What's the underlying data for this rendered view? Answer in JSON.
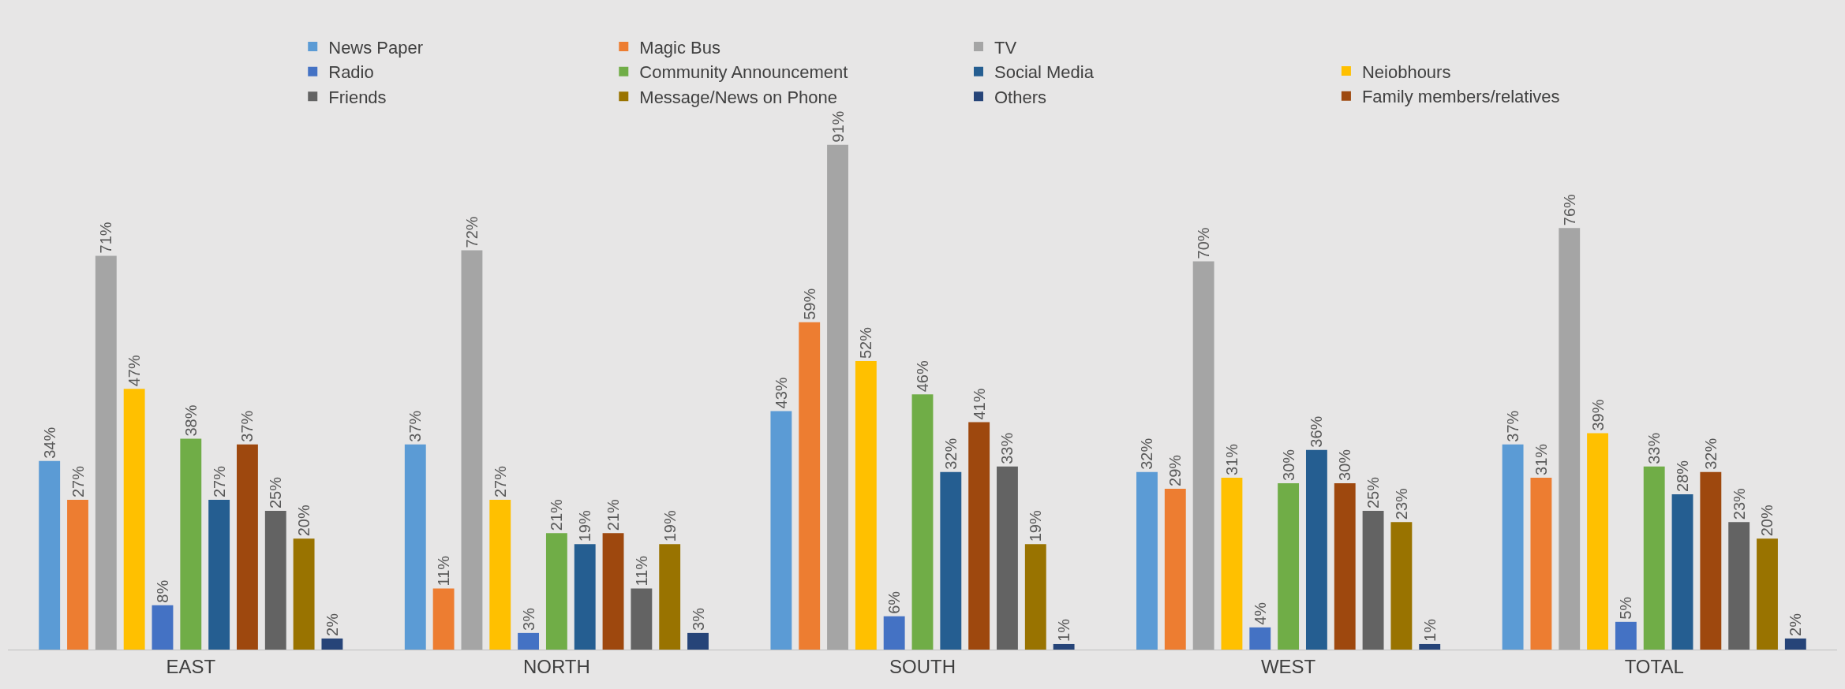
{
  "chart_data": {
    "type": "bar",
    "categories": [
      "EAST",
      "NORTH",
      "SOUTH",
      "WEST",
      "TOTAL"
    ],
    "legend": "top",
    "series": [
      {
        "name": "News Paper",
        "color": "#5b9bd5",
        "values": [
          34,
          37,
          43,
          32,
          37
        ],
        "value_labels": [
          "34%",
          "37%",
          "43%",
          "32%",
          "37%"
        ]
      },
      {
        "name": "Magic Bus",
        "color": "#ed7d31",
        "values": [
          27,
          11,
          59,
          29,
          31
        ],
        "value_labels": [
          "27%",
          "11%",
          "59%",
          "29%",
          "31%"
        ]
      },
      {
        "name": "TV",
        "color": "#a5a5a5",
        "values": [
          71,
          72,
          91,
          70,
          76
        ],
        "value_labels": [
          "71%",
          "72%",
          "91%",
          "70%",
          "76%"
        ]
      },
      {
        "name": "Neiobhours",
        "color": "#ffc000",
        "values": [
          47,
          27,
          52,
          31,
          39
        ],
        "value_labels": [
          "47%",
          "27%",
          "52%",
          "31%",
          "39%"
        ]
      },
      {
        "name": "Radio",
        "color": "#4472c4",
        "values": [
          8,
          3,
          6,
          4,
          5
        ],
        "value_labels": [
          "8%",
          "3%",
          "6%",
          "4%",
          "5%"
        ]
      },
      {
        "name": "Community Announcement",
        "color": "#70ad47",
        "values": [
          38,
          21,
          46,
          30,
          33
        ],
        "value_labels": [
          "38%",
          "21%",
          "46%",
          "30%",
          "33%"
        ]
      },
      {
        "name": "Social Media",
        "color": "#255e91",
        "values": [
          27,
          19,
          32,
          36,
          28
        ],
        "value_labels": [
          "27%",
          "19%",
          "32%",
          "36%",
          "28%"
        ]
      },
      {
        "name": "Family members/relatives",
        "color": "#9e480e",
        "values": [
          37,
          21,
          41,
          30,
          32
        ],
        "value_labels": [
          "37%",
          "21%",
          "41%",
          "30%",
          "32%"
        ]
      },
      {
        "name": "Friends",
        "color": "#636363",
        "values": [
          25,
          11,
          33,
          25,
          23
        ],
        "value_labels": [
          "25%",
          "11%",
          "33%",
          "25%",
          "23%"
        ]
      },
      {
        "name": "Message/News on Phone",
        "color": "#997300",
        "values": [
          20,
          19,
          19,
          23,
          20
        ],
        "value_labels": [
          "20%",
          "19%",
          "19%",
          "23%",
          "20%"
        ]
      },
      {
        "name": "Others",
        "color": "#264478",
        "values": [
          2,
          3,
          1,
          1,
          2
        ],
        "value_labels": [
          "2%",
          "3%",
          "1%",
          "1%",
          "2%"
        ]
      }
    ]
  }
}
